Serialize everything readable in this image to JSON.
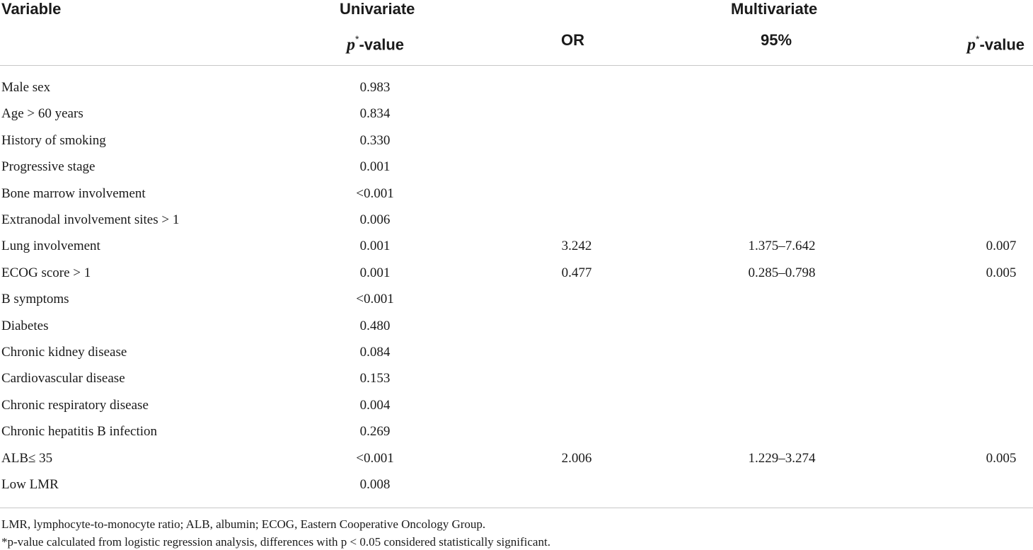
{
  "header": {
    "variable": "Variable",
    "univariate": "Univariate",
    "multivariate": "Multivariate",
    "p_italic": "p",
    "p_star": "*",
    "p_suffix": "-value",
    "or": "OR",
    "ci": "95%"
  },
  "rows": [
    {
      "variable": "Male sex",
      "uni_p": "0.983",
      "or": "",
      "ci": "",
      "multi_p": ""
    },
    {
      "variable": "Age > 60 years",
      "uni_p": "0.834",
      "or": "",
      "ci": "",
      "multi_p": ""
    },
    {
      "variable": "History of smoking",
      "uni_p": "0.330",
      "or": "",
      "ci": "",
      "multi_p": ""
    },
    {
      "variable": "Progressive stage",
      "uni_p": "0.001",
      "or": "",
      "ci": "",
      "multi_p": ""
    },
    {
      "variable": "Bone marrow involvement",
      "uni_p": "<0.001",
      "or": "",
      "ci": "",
      "multi_p": ""
    },
    {
      "variable": "Extranodal involvement sites > 1",
      "uni_p": "0.006",
      "or": "",
      "ci": "",
      "multi_p": ""
    },
    {
      "variable": "Lung involvement",
      "uni_p": "0.001",
      "or": "3.242",
      "ci": "1.375–7.642",
      "multi_p": "0.007"
    },
    {
      "variable": "ECOG score > 1",
      "uni_p": "0.001",
      "or": "0.477",
      "ci": "0.285–0.798",
      "multi_p": "0.005"
    },
    {
      "variable": "B symptoms",
      "uni_p": "<0.001",
      "or": "",
      "ci": "",
      "multi_p": ""
    },
    {
      "variable": "Diabetes",
      "uni_p": "0.480",
      "or": "",
      "ci": "",
      "multi_p": ""
    },
    {
      "variable": "Chronic kidney disease",
      "uni_p": "0.084",
      "or": "",
      "ci": "",
      "multi_p": ""
    },
    {
      "variable": "Cardiovascular disease",
      "uni_p": "0.153",
      "or": "",
      "ci": "",
      "multi_p": ""
    },
    {
      "variable": "Chronic respiratory disease",
      "uni_p": "0.004",
      "or": "",
      "ci": "",
      "multi_p": ""
    },
    {
      "variable": "Chronic hepatitis B infection",
      "uni_p": "0.269",
      "or": "",
      "ci": "",
      "multi_p": ""
    },
    {
      "variable": "ALB≤ 35",
      "uni_p": "<0.001",
      "or": "2.006",
      "ci": "1.229–3.274",
      "multi_p": "0.005"
    },
    {
      "variable": "Low LMR",
      "uni_p": "0.008",
      "or": "",
      "ci": "",
      "multi_p": ""
    }
  ],
  "footnotes": [
    "LMR, lymphocyte-to-monocyte ratio; ALB, albumin; ECOG, Eastern Cooperative Oncology Group.",
    "*p-value calculated from logistic regression analysis, differences with p < 0.05 considered statistically significant."
  ]
}
